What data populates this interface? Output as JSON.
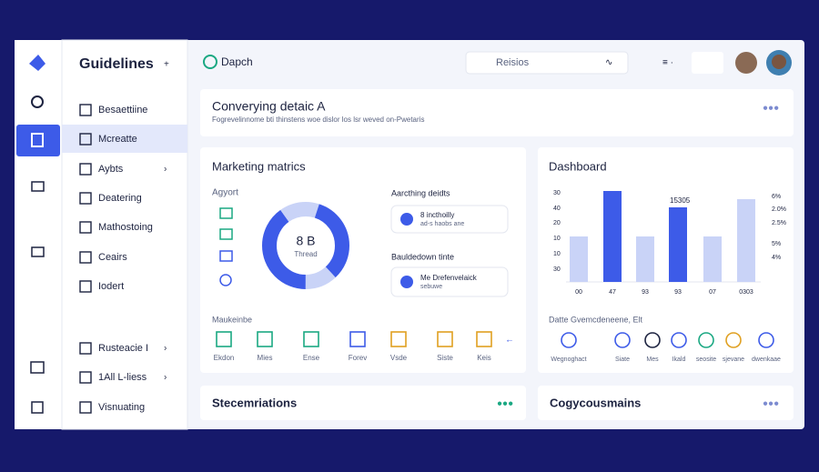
{
  "sidebar": {
    "title": "Guidelines",
    "items": [
      "Besaettiine",
      "Mcreatte",
      "Aybts",
      "Deatering",
      "Mathostoing",
      "Ceairs",
      "Iodert"
    ],
    "bottom_items": [
      "Rusteacie I",
      "1All L-liess",
      "Visnuating"
    ]
  },
  "header": {
    "app_name": "Dapch",
    "search": "Reisios"
  },
  "banner": {
    "title": "Converying detaic A",
    "subtitle": "Fogrevelinnome bti thinstens woe dislor los lsr weved on-Pwetaris"
  },
  "marketing": {
    "title": "Marketing matrics",
    "left_label": "Agyort",
    "donut": {
      "center_value": "8 B",
      "center_label": "Thread",
      "values": [
        5,
        33,
        12,
        40,
        10
      ],
      "colors": [
        "#c9d3f7",
        "#3d5be8",
        "#c9d3f7",
        "#3d5be8",
        "#c9d3f7"
      ]
    },
    "list_title": "Aarcthing deidts",
    "item1": {
      "title": "8 incthoilly",
      "subtitle": "ad-s haobs ane"
    },
    "list_title2": "Bauldedown tinte",
    "item2": {
      "title": "Me Drefenvelaick",
      "subtitle": "sebuwe"
    },
    "tools_title": "Maukeinbe",
    "tools": [
      "Ekdon",
      "Mies",
      "Ense",
      "Forev",
      "Vsde",
      "Siste",
      "Keis"
    ]
  },
  "dashboard": {
    "title": "Dashboard",
    "left_labels": [
      "30",
      "40",
      "20",
      "10",
      "10",
      "30"
    ],
    "right_labels": [
      "6%",
      "2.0%",
      "2.5%",
      "5%",
      "4%"
    ],
    "x_labels": [
      "00",
      "47",
      "93",
      "93",
      "07",
      "0303"
    ],
    "annotation": "15305",
    "bars": {
      "values": [
        50,
        100,
        50,
        82,
        50,
        91
      ],
      "colors": [
        "#c9d3f7",
        "#3d5be8",
        "#c9d3f7",
        "#3d5be8",
        "#c9d3f7",
        "#c9d3f7"
      ],
      "ylim": [
        0,
        100
      ]
    },
    "legend_title": "Datte Gvemcdeneene, Elt",
    "legend_items": [
      "Wegnoghact",
      "Siate",
      "Mes",
      "Ikald",
      "seosite",
      "sjevane",
      "dwenkaae"
    ]
  },
  "footer_cards": [
    "Stecemriations",
    "Cogycousmains"
  ]
}
